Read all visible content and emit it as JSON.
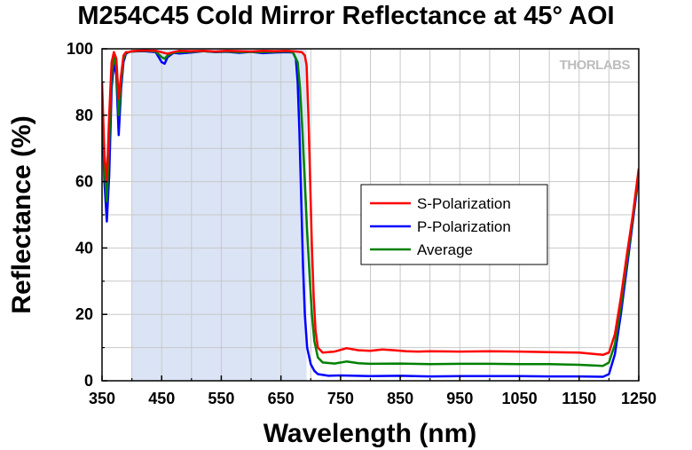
{
  "chart_data": {
    "type": "line",
    "title": "M254C45 Cold Mirror Reflectance at 45° AOI",
    "xlabel": "Wavelength (nm)",
    "ylabel": "Reflectance (%)",
    "xlim": [
      350,
      1250
    ],
    "ylim": [
      0,
      100
    ],
    "x_ticks": [
      350,
      450,
      550,
      650,
      750,
      850,
      950,
      1050,
      1150,
      1250
    ],
    "x_tick_labels": [
      "350",
      "450",
      "550",
      "650",
      "750",
      "850",
      "950",
      "1050",
      "1150",
      "1250"
    ],
    "y_ticks": [
      0,
      20,
      40,
      60,
      80,
      100
    ],
    "y_tick_labels": [
      "0",
      "20",
      "40",
      "60",
      "80",
      "100"
    ],
    "grid": true,
    "legend_position": "center-right",
    "watermark": "THORLABS",
    "highlight_band": {
      "x_start": 400,
      "x_end": 693,
      "color": "#dbe4f5"
    },
    "series": [
      {
        "name": "S-Polarization",
        "color": "#ff0000",
        "points": [
          [
            350,
            90
          ],
          [
            354,
            68
          ],
          [
            358,
            60
          ],
          [
            362,
            80
          ],
          [
            366,
            96
          ],
          [
            370,
            99
          ],
          [
            374,
            97
          ],
          [
            378,
            85
          ],
          [
            382,
            92
          ],
          [
            386,
            98
          ],
          [
            390,
            99
          ],
          [
            395,
            99
          ],
          [
            400,
            99.3
          ],
          [
            420,
            99.5
          ],
          [
            440,
            99.4
          ],
          [
            460,
            98.5
          ],
          [
            470,
            99
          ],
          [
            480,
            99.4
          ],
          [
            500,
            99.3
          ],
          [
            520,
            99.4
          ],
          [
            540,
            99.2
          ],
          [
            560,
            99.4
          ],
          [
            580,
            99.3
          ],
          [
            600,
            99.2
          ],
          [
            620,
            99.4
          ],
          [
            640,
            99.3
          ],
          [
            660,
            99.4
          ],
          [
            675,
            99.2
          ],
          [
            685,
            99
          ],
          [
            690,
            98
          ],
          [
            693,
            95
          ],
          [
            696,
            80
          ],
          [
            699,
            60
          ],
          [
            702,
            40
          ],
          [
            705,
            25
          ],
          [
            708,
            15
          ],
          [
            712,
            10
          ],
          [
            720,
            8.5
          ],
          [
            740,
            8.8
          ],
          [
            760,
            9.8
          ],
          [
            780,
            9.2
          ],
          [
            800,
            9.0
          ],
          [
            820,
            9.4
          ],
          [
            840,
            9.2
          ],
          [
            860,
            8.9
          ],
          [
            880,
            8.8
          ],
          [
            900,
            8.9
          ],
          [
            950,
            8.8
          ],
          [
            1000,
            8.9
          ],
          [
            1050,
            8.8
          ],
          [
            1100,
            8.6
          ],
          [
            1150,
            8.5
          ],
          [
            1180,
            8.0
          ],
          [
            1190,
            7.8
          ],
          [
            1200,
            8.5
          ],
          [
            1210,
            14
          ],
          [
            1220,
            25
          ],
          [
            1230,
            38
          ],
          [
            1240,
            50
          ],
          [
            1250,
            64
          ]
        ]
      },
      {
        "name": "P-Polarization",
        "color": "#0000ff",
        "points": [
          [
            350,
            85
          ],
          [
            354,
            60
          ],
          [
            358,
            48
          ],
          [
            362,
            62
          ],
          [
            366,
            88
          ],
          [
            370,
            96
          ],
          [
            374,
            92
          ],
          [
            378,
            74
          ],
          [
            382,
            88
          ],
          [
            386,
            96
          ],
          [
            390,
            98.5
          ],
          [
            395,
            99
          ],
          [
            400,
            99.2
          ],
          [
            420,
            99.3
          ],
          [
            440,
            99
          ],
          [
            450,
            96
          ],
          [
            455,
            95.5
          ],
          [
            460,
            97.5
          ],
          [
            470,
            98.8
          ],
          [
            480,
            98.6
          ],
          [
            500,
            98.9
          ],
          [
            520,
            99.3
          ],
          [
            540,
            99
          ],
          [
            560,
            99.1
          ],
          [
            580,
            98.8
          ],
          [
            600,
            99.1
          ],
          [
            620,
            98.7
          ],
          [
            640,
            98.9
          ],
          [
            660,
            99
          ],
          [
            670,
            98.9
          ],
          [
            675,
            97
          ],
          [
            678,
            90
          ],
          [
            681,
            75
          ],
          [
            684,
            55
          ],
          [
            687,
            35
          ],
          [
            690,
            20
          ],
          [
            694,
            10
          ],
          [
            700,
            5
          ],
          [
            706,
            3
          ],
          [
            712,
            2
          ],
          [
            730,
            1.5
          ],
          [
            750,
            1.6
          ],
          [
            800,
            1.4
          ],
          [
            850,
            1.5
          ],
          [
            900,
            1.3
          ],
          [
            950,
            1.4
          ],
          [
            1000,
            1.4
          ],
          [
            1050,
            1.4
          ],
          [
            1100,
            1.3
          ],
          [
            1150,
            1.3
          ],
          [
            1190,
            1.2
          ],
          [
            1200,
            2
          ],
          [
            1210,
            8
          ],
          [
            1220,
            20
          ],
          [
            1230,
            34
          ],
          [
            1240,
            48
          ],
          [
            1250,
            62
          ]
        ]
      },
      {
        "name": "Average",
        "color": "#008000",
        "points": [
          [
            350,
            88
          ],
          [
            354,
            64
          ],
          [
            358,
            54
          ],
          [
            362,
            72
          ],
          [
            366,
            92
          ],
          [
            370,
            97.5
          ],
          [
            374,
            94.5
          ],
          [
            378,
            80
          ],
          [
            382,
            90
          ],
          [
            386,
            97
          ],
          [
            390,
            98.8
          ],
          [
            395,
            99
          ],
          [
            400,
            99.2
          ],
          [
            420,
            99.4
          ],
          [
            440,
            99.2
          ],
          [
            450,
            97.5
          ],
          [
            455,
            97
          ],
          [
            460,
            98
          ],
          [
            470,
            98.9
          ],
          [
            480,
            99
          ],
          [
            500,
            99.1
          ],
          [
            520,
            99.3
          ],
          [
            540,
            99.1
          ],
          [
            560,
            99.2
          ],
          [
            580,
            99
          ],
          [
            600,
            99.1
          ],
          [
            620,
            99
          ],
          [
            640,
            99.1
          ],
          [
            660,
            99.2
          ],
          [
            670,
            99
          ],
          [
            678,
            96
          ],
          [
            682,
            88
          ],
          [
            686,
            75
          ],
          [
            690,
            60
          ],
          [
            694,
            45
          ],
          [
            698,
            32
          ],
          [
            702,
            20
          ],
          [
            706,
            12
          ],
          [
            712,
            7
          ],
          [
            720,
            5.5
          ],
          [
            740,
            5.2
          ],
          [
            760,
            5.8
          ],
          [
            780,
            5.3
          ],
          [
            800,
            5.1
          ],
          [
            850,
            5.2
          ],
          [
            900,
            5.0
          ],
          [
            950,
            5.1
          ],
          [
            1000,
            5.1
          ],
          [
            1050,
            5.0
          ],
          [
            1100,
            5.0
          ],
          [
            1150,
            4.8
          ],
          [
            1190,
            4.5
          ],
          [
            1200,
            5.5
          ],
          [
            1210,
            11
          ],
          [
            1220,
            22.5
          ],
          [
            1230,
            36
          ],
          [
            1240,
            49
          ],
          [
            1250,
            63
          ]
        ]
      }
    ]
  }
}
